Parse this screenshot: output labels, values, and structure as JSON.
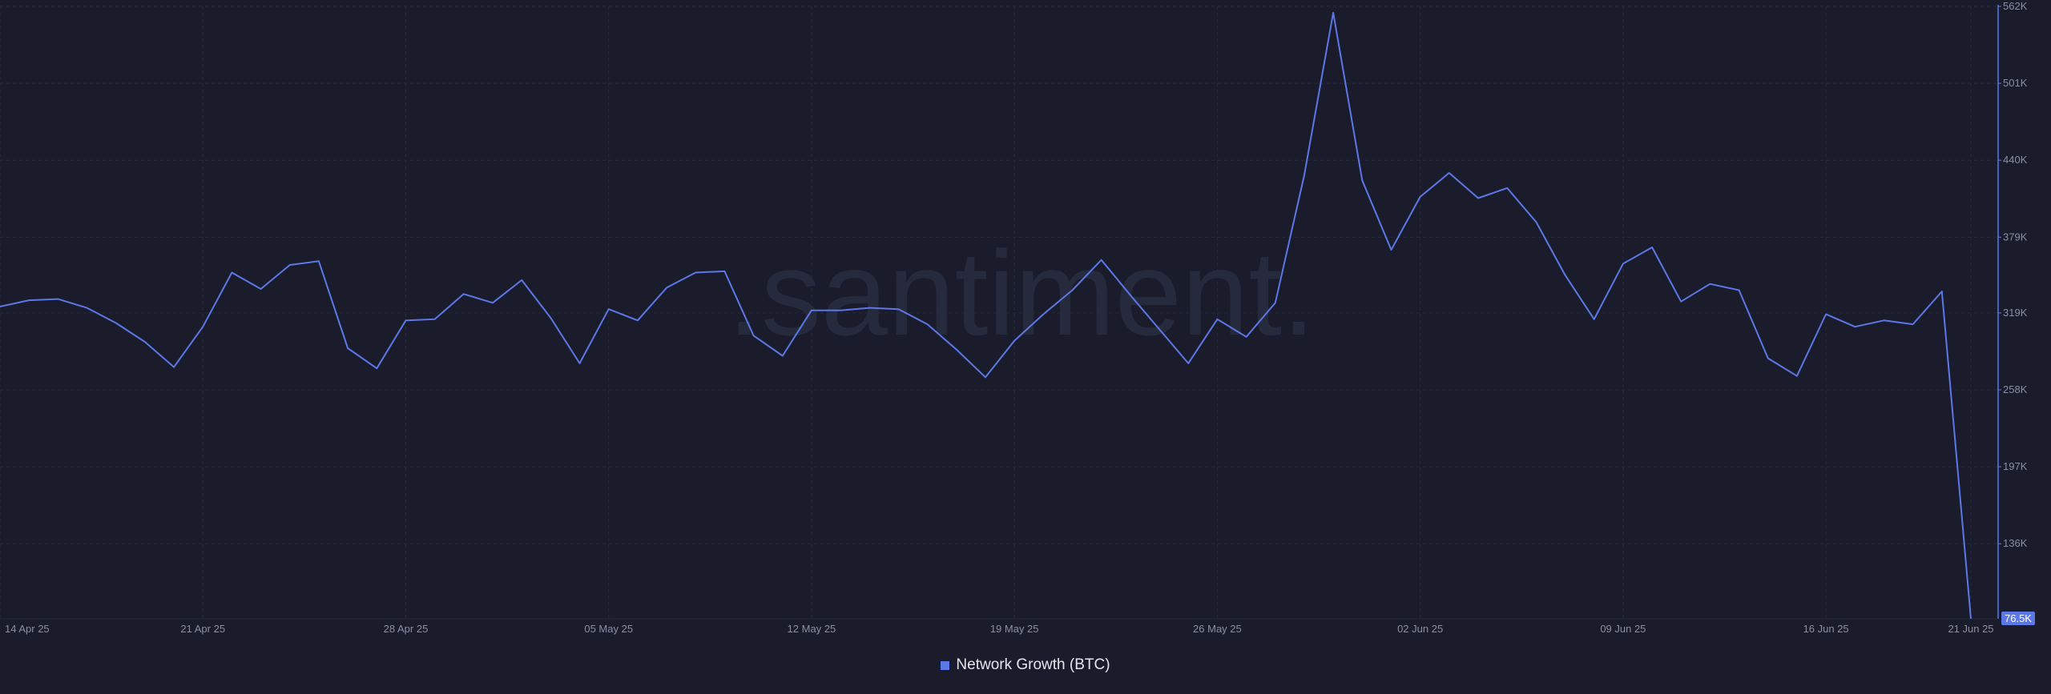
{
  "watermark": ".santiment.",
  "colors": {
    "background": "#1a1c2c",
    "line": "#5b78e6",
    "grid": "#262a3a",
    "tick_text": "#8b8fa3",
    "last_value_badge": "#5b78e6"
  },
  "legend": {
    "label": "Network Growth (BTC)",
    "placement": "bottom-center"
  },
  "chart_data": {
    "type": "line",
    "title": "",
    "xlabel": "",
    "ylabel": "",
    "grid": true,
    "y_axis_position": "right",
    "ylim": [
      76500,
      562000
    ],
    "y_ticks": [
      136000,
      197000,
      258000,
      319000,
      379000,
      440000,
      501000,
      562000
    ],
    "y_tick_labels": [
      "136K",
      "197K",
      "258K",
      "319K",
      "379K",
      "440K",
      "501K",
      "562K"
    ],
    "x_ticks": [
      "2025-04-14",
      "2025-04-21",
      "2025-04-28",
      "2025-05-05",
      "2025-05-12",
      "2025-05-19",
      "2025-05-26",
      "2025-06-02",
      "2025-06-09",
      "2025-06-16",
      "2025-06-21"
    ],
    "x_tick_labels": [
      "14 Apr 25",
      "21 Apr 25",
      "28 Apr 25",
      "05 May 25",
      "12 May 25",
      "19 May 25",
      "26 May 25",
      "02 Jun 25",
      "09 Jun 25",
      "16 Jun 25",
      "21 Jun 25"
    ],
    "last_value_label": "76.5K",
    "series": [
      {
        "name": "Network Growth (BTC)",
        "x": [
          "2025-04-14",
          "2025-04-15",
          "2025-04-16",
          "2025-04-17",
          "2025-04-18",
          "2025-04-19",
          "2025-04-20",
          "2025-04-21",
          "2025-04-22",
          "2025-04-23",
          "2025-04-24",
          "2025-04-25",
          "2025-04-26",
          "2025-04-27",
          "2025-04-28",
          "2025-04-29",
          "2025-04-30",
          "2025-05-01",
          "2025-05-02",
          "2025-05-03",
          "2025-05-04",
          "2025-05-05",
          "2025-05-06",
          "2025-05-07",
          "2025-05-08",
          "2025-05-09",
          "2025-05-10",
          "2025-05-11",
          "2025-05-12",
          "2025-05-13",
          "2025-05-14",
          "2025-05-15",
          "2025-05-16",
          "2025-05-17",
          "2025-05-18",
          "2025-05-19",
          "2025-05-20",
          "2025-05-21",
          "2025-05-22",
          "2025-05-23",
          "2025-05-24",
          "2025-05-25",
          "2025-05-26",
          "2025-05-27",
          "2025-05-28",
          "2025-05-29",
          "2025-05-30",
          "2025-05-31",
          "2025-06-01",
          "2025-06-02",
          "2025-06-03",
          "2025-06-04",
          "2025-06-05",
          "2025-06-06",
          "2025-06-07",
          "2025-06-08",
          "2025-06-09",
          "2025-06-10",
          "2025-06-11",
          "2025-06-12",
          "2025-06-13",
          "2025-06-14",
          "2025-06-15",
          "2025-06-16",
          "2025-06-17",
          "2025-06-18",
          "2025-06-19",
          "2025-06-20",
          "2025-06-21"
        ],
        "values": [
          324000,
          329000,
          330000,
          323000,
          311000,
          296000,
          276000,
          308000,
          351000,
          338000,
          357000,
          360000,
          291000,
          275000,
          313000,
          314000,
          334000,
          327000,
          345000,
          315000,
          279000,
          322000,
          313000,
          339000,
          351000,
          352000,
          301000,
          285000,
          321000,
          321000,
          323000,
          322000,
          310000,
          290000,
          268000,
          297000,
          318000,
          337000,
          361000,
          333000,
          306000,
          279000,
          314000,
          300000,
          327000,
          428000,
          557000,
          424000,
          369000,
          411000,
          430000,
          410000,
          418000,
          391000,
          349000,
          314000,
          358000,
          371000,
          328000,
          342000,
          337000,
          283000,
          269000,
          318000,
          308000,
          313000,
          310000,
          336000,
          76500
        ]
      }
    ]
  }
}
